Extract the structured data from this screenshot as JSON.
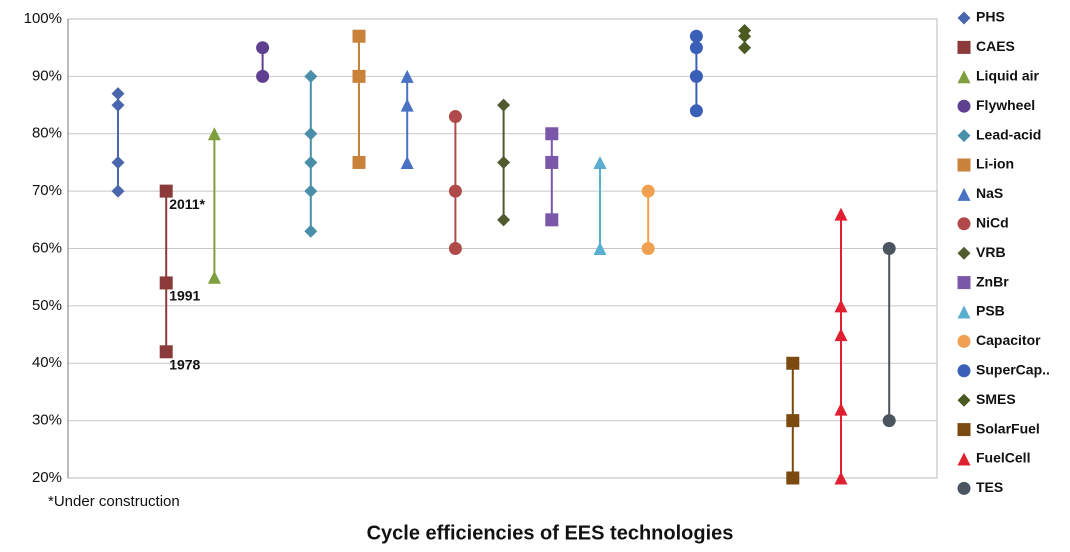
{
  "chart_data": {
    "type": "range",
    "title": "Cycle efficiencies of EES technologies",
    "note": "*Under construction",
    "ylim": [
      20,
      100
    ],
    "yticks": [
      {
        "value": 20,
        "label": "20%"
      },
      {
        "value": 30,
        "label": "30%"
      },
      {
        "value": 40,
        "label": "40%"
      },
      {
        "value": 50,
        "label": "50%"
      },
      {
        "value": 60,
        "label": "60%"
      },
      {
        "value": 70,
        "label": "70%"
      },
      {
        "value": 80,
        "label": "80%"
      },
      {
        "value": 90,
        "label": "90%"
      },
      {
        "value": 100,
        "label": "100%"
      }
    ],
    "grid": true,
    "legend": "right",
    "series": [
      {
        "name": "PHS",
        "color": "#4a66ac",
        "marker": "diamond",
        "values": [
          70,
          75,
          85,
          87
        ]
      },
      {
        "name": "CAES",
        "color": "#8b3a3a",
        "marker": "square",
        "values": [
          42,
          54,
          70
        ],
        "point_labels": [
          "1978",
          "1991",
          "2011*"
        ]
      },
      {
        "name": "Liquid air",
        "color": "#7f9f3f",
        "marker": "triangle",
        "values": [
          55,
          80
        ]
      },
      {
        "name": "Flywheel",
        "color": "#5f3f8f",
        "marker": "circle",
        "values": [
          90,
          95
        ]
      },
      {
        "name": "Lead-acid",
        "color": "#4a8fa8",
        "marker": "diamond",
        "values": [
          63,
          70,
          75,
          80,
          90
        ]
      },
      {
        "name": "Li-ion",
        "color": "#c8823a",
        "marker": "square",
        "values": [
          75,
          90,
          97
        ]
      },
      {
        "name": "NaS",
        "color": "#4a72c4",
        "marker": "triangle",
        "values": [
          75,
          85,
          90
        ]
      },
      {
        "name": "NiCd",
        "color": "#b04a4a",
        "marker": "circle",
        "values": [
          60,
          70,
          83
        ]
      },
      {
        "name": "VRB",
        "color": "#4f5a2f",
        "marker": "diamond",
        "values": [
          65,
          75,
          85
        ]
      },
      {
        "name": "ZnBr",
        "color": "#7a57a8",
        "marker": "square",
        "values": [
          65,
          75,
          80
        ]
      },
      {
        "name": "PSB",
        "color": "#5aaed0",
        "marker": "triangle",
        "values": [
          60,
          75
        ]
      },
      {
        "name": "Capacitor",
        "color": "#f0a050",
        "marker": "circle",
        "values": [
          60,
          70
        ]
      },
      {
        "name": "SuperCap..",
        "color": "#3a5fb8",
        "marker": "circle",
        "values": [
          84,
          90,
          95,
          97
        ]
      },
      {
        "name": "SMES",
        "color": "#4a5a20",
        "marker": "diamond",
        "values": [
          95,
          97,
          98
        ]
      },
      {
        "name": "SolarFuel",
        "color": "#7a4a10",
        "marker": "square",
        "values": [
          20,
          30,
          40
        ]
      },
      {
        "name": "FuelCell",
        "color": "#e02030",
        "marker": "triangle",
        "values": [
          20,
          32,
          45,
          50,
          66
        ]
      },
      {
        "name": "TES",
        "color": "#4a5560",
        "marker": "circle",
        "values": [
          30,
          60
        ]
      }
    ]
  }
}
